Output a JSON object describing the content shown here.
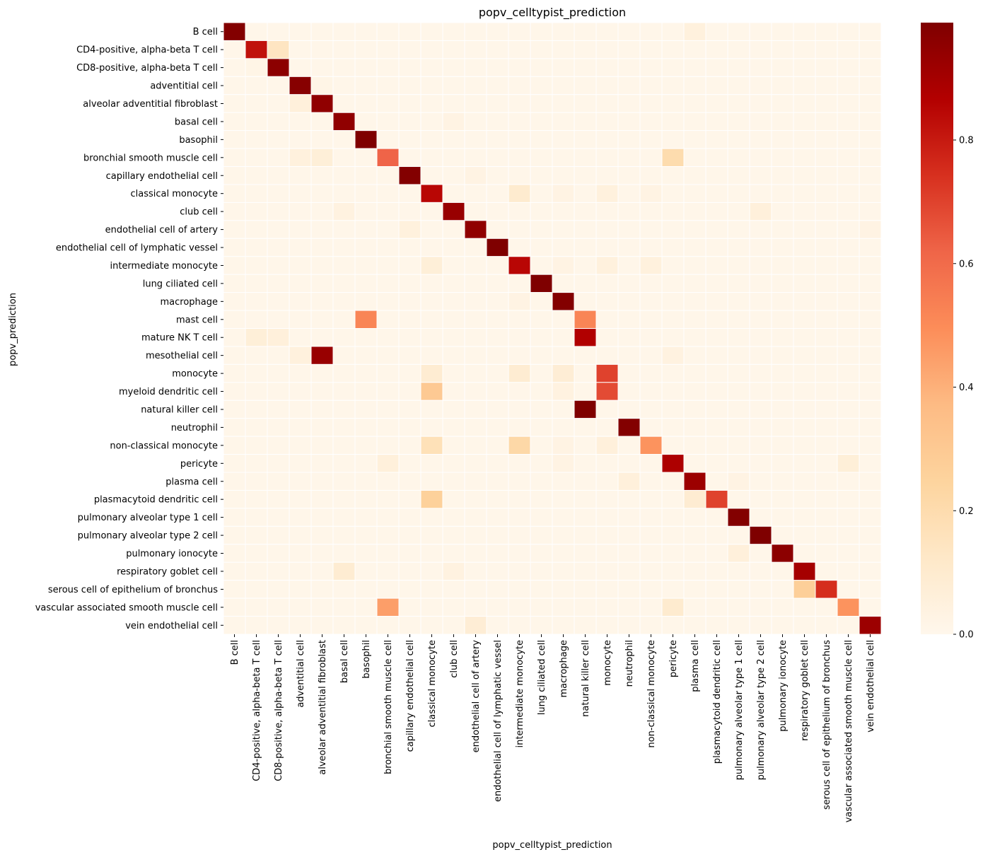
{
  "chart_data": {
    "type": "heatmap",
    "title": "popv_celltypist_prediction",
    "xlabel": "popv_celltypist_prediction",
    "ylabel": "popv_prediction",
    "rows": [
      "B cell",
      "CD4-positive, alpha-beta T cell",
      "CD8-positive, alpha-beta T cell",
      "adventitial cell",
      "alveolar adventitial fibroblast",
      "basal cell",
      "basophil",
      "bronchial smooth muscle cell",
      "capillary endothelial cell",
      "classical monocyte",
      "club cell",
      "endothelial cell of artery",
      "endothelial cell of lymphatic vessel",
      "intermediate monocyte",
      "lung ciliated cell",
      "macrophage",
      "mast cell",
      "mature NK T cell",
      "mesothelial cell",
      "monocyte",
      "myeloid dendritic cell",
      "natural killer cell",
      "neutrophil",
      "non-classical monocyte",
      "pericyte",
      "plasma cell",
      "plasmacytoid dendritic cell",
      "pulmonary alveolar type 1 cell",
      "pulmonary alveolar type 2 cell",
      "pulmonary ionocyte",
      "respiratory goblet cell",
      "serous cell of epithelium of bronchus",
      "vascular associated smooth muscle cell",
      "vein endothelial cell"
    ],
    "columns": [
      "B cell",
      "CD4-positive, alpha-beta T cell",
      "CD8-positive, alpha-beta T cell",
      "adventitial cell",
      "alveolar adventitial fibroblast",
      "basal cell",
      "basophil",
      "bronchial smooth muscle cell",
      "capillary endothelial cell",
      "classical monocyte",
      "club cell",
      "endothelial cell of artery",
      "endothelial cell of lymphatic vessel",
      "intermediate monocyte",
      "lung ciliated cell",
      "macrophage",
      "natural killer cell",
      "monocyte",
      "neutrophil",
      "non-classical monocyte",
      "pericyte",
      "plasma cell",
      "plasmacytoid dendritic cell",
      "pulmonary alveolar type 1 cell",
      "pulmonary alveolar type 2 cell",
      "pulmonary ionocyte",
      "respiratory goblet cell",
      "serous cell of epithelium of bronchus",
      "vascular associated smooth muscle cell",
      "vein endothelial cell"
    ],
    "default_value": 0.01,
    "cells": [
      [
        0,
        0,
        0.98
      ],
      [
        0,
        21,
        0.05
      ],
      [
        1,
        1,
        0.82
      ],
      [
        1,
        2,
        0.14
      ],
      [
        2,
        1,
        0.02
      ],
      [
        2,
        2,
        0.96
      ],
      [
        3,
        3,
        0.97
      ],
      [
        3,
        4,
        0.02
      ],
      [
        4,
        3,
        0.06
      ],
      [
        4,
        4,
        0.95
      ],
      [
        5,
        5,
        0.95
      ],
      [
        5,
        10,
        0.03
      ],
      [
        6,
        6,
        0.99
      ],
      [
        7,
        3,
        0.05
      ],
      [
        7,
        4,
        0.07
      ],
      [
        7,
        7,
        0.62
      ],
      [
        7,
        20,
        0.2
      ],
      [
        8,
        8,
        0.98
      ],
      [
        8,
        11,
        0.03
      ],
      [
        9,
        9,
        0.85
      ],
      [
        9,
        13,
        0.1
      ],
      [
        9,
        15,
        0.03
      ],
      [
        9,
        17,
        0.05
      ],
      [
        9,
        19,
        0.03
      ],
      [
        10,
        5,
        0.04
      ],
      [
        10,
        10,
        0.93
      ],
      [
        10,
        24,
        0.06
      ],
      [
        11,
        8,
        0.05
      ],
      [
        11,
        11,
        0.95
      ],
      [
        11,
        29,
        0.03
      ],
      [
        12,
        12,
        0.99
      ],
      [
        13,
        9,
        0.07
      ],
      [
        13,
        13,
        0.85
      ],
      [
        13,
        15,
        0.03
      ],
      [
        13,
        17,
        0.05
      ],
      [
        13,
        19,
        0.05
      ],
      [
        14,
        14,
        0.99
      ],
      [
        15,
        13,
        0.03
      ],
      [
        15,
        15,
        0.98
      ],
      [
        16,
        6,
        0.52
      ],
      [
        16,
        16,
        0.52
      ],
      [
        17,
        1,
        0.07
      ],
      [
        17,
        2,
        0.06
      ],
      [
        17,
        16,
        0.87
      ],
      [
        18,
        3,
        0.05
      ],
      [
        18,
        4,
        0.93
      ],
      [
        18,
        20,
        0.04
      ],
      [
        19,
        9,
        0.09
      ],
      [
        19,
        13,
        0.09
      ],
      [
        19,
        15,
        0.08
      ],
      [
        19,
        17,
        0.7
      ],
      [
        20,
        9,
        0.3
      ],
      [
        20,
        15,
        0.04
      ],
      [
        20,
        17,
        0.68
      ],
      [
        21,
        16,
        0.99
      ],
      [
        22,
        18,
        0.98
      ],
      [
        23,
        9,
        0.17
      ],
      [
        23,
        13,
        0.22
      ],
      [
        23,
        15,
        0.03
      ],
      [
        23,
        17,
        0.06
      ],
      [
        23,
        19,
        0.48
      ],
      [
        24,
        7,
        0.06
      ],
      [
        24,
        15,
        0.03
      ],
      [
        24,
        20,
        0.88
      ],
      [
        24,
        28,
        0.07
      ],
      [
        25,
        18,
        0.06
      ],
      [
        25,
        21,
        0.92
      ],
      [
        25,
        23,
        0.03
      ],
      [
        26,
        9,
        0.26
      ],
      [
        26,
        21,
        0.09
      ],
      [
        26,
        22,
        0.7
      ],
      [
        27,
        23,
        0.98
      ],
      [
        28,
        24,
        0.99
      ],
      [
        29,
        23,
        0.06
      ],
      [
        29,
        25,
        0.96
      ],
      [
        30,
        5,
        0.09
      ],
      [
        30,
        10,
        0.04
      ],
      [
        30,
        26,
        0.9
      ],
      [
        31,
        26,
        0.27
      ],
      [
        31,
        27,
        0.75
      ],
      [
        32,
        7,
        0.45
      ],
      [
        32,
        20,
        0.1
      ],
      [
        32,
        28,
        0.48
      ],
      [
        33,
        11,
        0.08
      ],
      [
        33,
        29,
        0.92
      ]
    ],
    "colorbar": {
      "colormap": "OrRd",
      "range": [
        0,
        0.99
      ],
      "ticks": [
        0.0,
        0.2,
        0.4,
        0.6,
        0.8
      ],
      "tick_labels": [
        "0.0",
        "0.2",
        "0.4",
        "0.6",
        "0.8"
      ],
      "position": "right"
    },
    "grid": true,
    "legend": "none"
  }
}
